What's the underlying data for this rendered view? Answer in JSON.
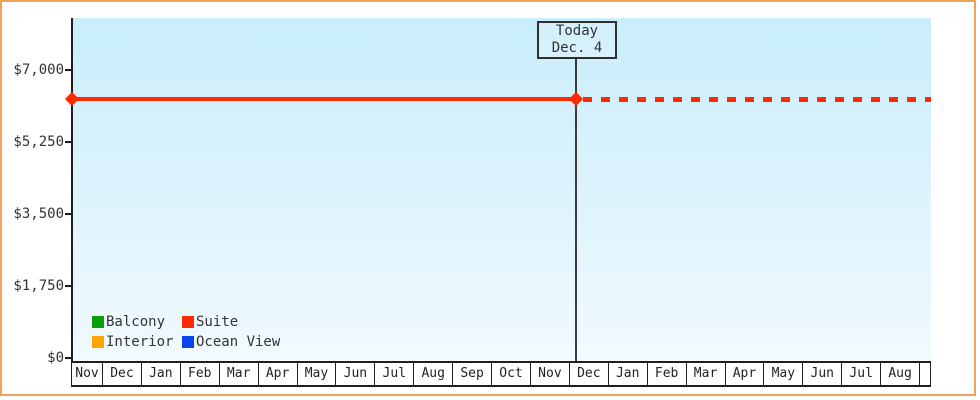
{
  "chart_data": {
    "type": "line",
    "title": "",
    "y_ticks": [
      "$0",
      "$1,750",
      "$3,500",
      "$5,250",
      "$7,000"
    ],
    "ylim_visible": [
      0,
      8300
    ],
    "x_categories": [
      "Nov",
      "Dec",
      "Jan",
      "Feb",
      "Mar",
      "Apr",
      "May",
      "Jun",
      "Jul",
      "Aug",
      "Sep",
      "Oct",
      "Nov",
      "Dec",
      "Jan",
      "Feb",
      "Mar",
      "Apr",
      "May",
      "Jun",
      "Jul",
      "Aug"
    ],
    "grid": false,
    "legend_position": "bottom-left-inside-plot",
    "today_annotation": {
      "title": "Today",
      "date": "Dec. 4",
      "x_month_index": 13
    },
    "series": [
      {
        "name": "Balcony",
        "color": "#0a9e0a",
        "points": []
      },
      {
        "name": "Suite",
        "color": "#ff2b00",
        "approx_value": 6300,
        "points": [
          {
            "x": "Nov (chart start)",
            "y": 6300
          },
          {
            "x": "Dec 4 (today)",
            "y": 6300
          },
          {
            "x": "Aug (chart end, projected)",
            "y": 6300
          }
        ],
        "style_before_today": "solid",
        "style_after_today": "dotted",
        "markers": [
          "start-diamond",
          "today-diamond"
        ]
      },
      {
        "name": "Interior",
        "color": "#ffa500",
        "points": []
      },
      {
        "name": "Ocean View",
        "color": "#0a44ea",
        "points": []
      }
    ]
  },
  "frame": {
    "border_color": "#efa557"
  },
  "colors": {
    "plot_gradient_top": "#c9edfb",
    "plot_gradient_bottom": "#f1faff",
    "axis": "#1f1f1f",
    "text": "#333333",
    "suite_line": "#ff2b00"
  }
}
